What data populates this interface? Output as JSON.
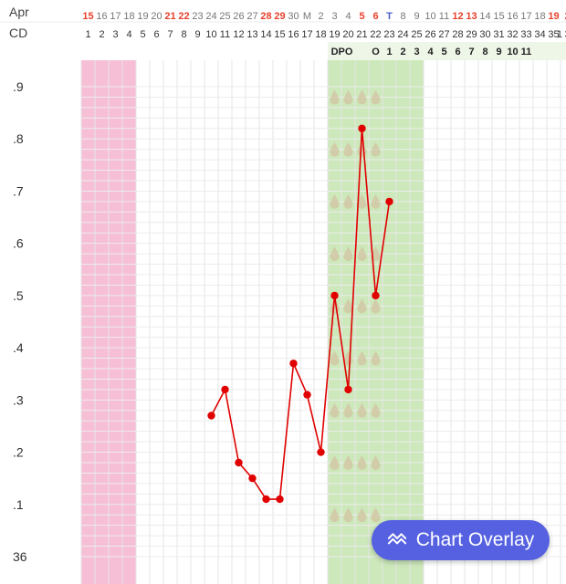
{
  "header": {
    "month_label": "Apr",
    "cd_label": "CD",
    "dpo_label": "DPO"
  },
  "chart_data": {
    "type": "line",
    "date_row": [
      {
        "t": "15",
        "red": true
      },
      {
        "t": "16"
      },
      {
        "t": "17"
      },
      {
        "t": "18"
      },
      {
        "t": "19"
      },
      {
        "t": "20"
      },
      {
        "t": "21",
        "red": true
      },
      {
        "t": "22",
        "red": true
      },
      {
        "t": "23"
      },
      {
        "t": "24"
      },
      {
        "t": "25"
      },
      {
        "t": "26"
      },
      {
        "t": "27"
      },
      {
        "t": "28",
        "red": true
      },
      {
        "t": "29",
        "red": true
      },
      {
        "t": "30"
      },
      {
        "t": "M"
      },
      {
        "t": "2"
      },
      {
        "t": "3"
      },
      {
        "t": "4"
      },
      {
        "t": "5",
        "red": true
      },
      {
        "t": "6",
        "red": true
      },
      {
        "t": "T",
        "blue": true
      },
      {
        "t": "8"
      },
      {
        "t": "9"
      },
      {
        "t": "10"
      },
      {
        "t": "11"
      },
      {
        "t": "12",
        "red": true
      },
      {
        "t": "13",
        "red": true
      },
      {
        "t": "14"
      },
      {
        "t": "15"
      },
      {
        "t": "16"
      },
      {
        "t": "17"
      },
      {
        "t": "18"
      },
      {
        "t": "19",
        "red": true
      },
      {
        "t": "2",
        "red": true
      }
    ],
    "cycle_days": [
      "1",
      "2",
      "3",
      "4",
      "5",
      "6",
      "7",
      "8",
      "9",
      "10",
      "11",
      "12",
      "13",
      "14",
      "15",
      "16",
      "17",
      "18",
      "19",
      "20",
      "21",
      "22",
      "23",
      "24",
      "25",
      "26",
      "27",
      "28",
      "29",
      "30",
      "31",
      "32",
      "33",
      "34",
      "35",
      "3"
    ],
    "cd_right_cell": "1",
    "dpo_row": [
      "O",
      "1",
      "2",
      "3",
      "4",
      "5",
      "6",
      "7",
      "8",
      "9",
      "10",
      "11"
    ],
    "y_ticks": [
      ".9",
      ".8",
      ".7",
      ".6",
      ".5",
      ".4",
      ".3",
      ".2",
      ".1",
      "36"
    ],
    "y_tick_values": [
      36.9,
      36.8,
      36.7,
      36.6,
      36.5,
      36.4,
      36.3,
      36.2,
      36.1,
      36.0
    ],
    "x_range": [
      1,
      36
    ],
    "period_days": [
      1,
      4
    ],
    "fertile_days": [
      19,
      25
    ],
    "fertile_marker_days": [
      19,
      20,
      21,
      22
    ],
    "series": [
      {
        "points": [
          {
            "cd": 10,
            "temp": 36.27
          },
          {
            "cd": 11,
            "temp": 36.32
          },
          {
            "cd": 12,
            "temp": 36.18
          },
          {
            "cd": 13,
            "temp": 36.15
          },
          {
            "cd": 14,
            "temp": 36.11
          },
          {
            "cd": 15,
            "temp": 36.11
          },
          {
            "cd": 16,
            "temp": 36.37
          },
          {
            "cd": 17,
            "temp": 36.31
          },
          {
            "cd": 18,
            "temp": 36.2
          },
          {
            "cd": 19,
            "temp": 36.5
          },
          {
            "cd": 20,
            "temp": 36.32
          },
          {
            "cd": 21,
            "temp": 36.82
          },
          {
            "cd": 22,
            "temp": 36.5
          },
          {
            "cd": 23,
            "temp": 36.68
          }
        ]
      }
    ],
    "colors": {
      "line": "#e00000",
      "period": "#f7bfd6",
      "fertile": "#cde8bb",
      "weekend": "#e8412c",
      "highlight_day": "#4a60c8",
      "drop": "#d2c8a6"
    }
  },
  "overlay_button": {
    "label": "Chart Overlay",
    "icon": "trend-line-icon"
  }
}
